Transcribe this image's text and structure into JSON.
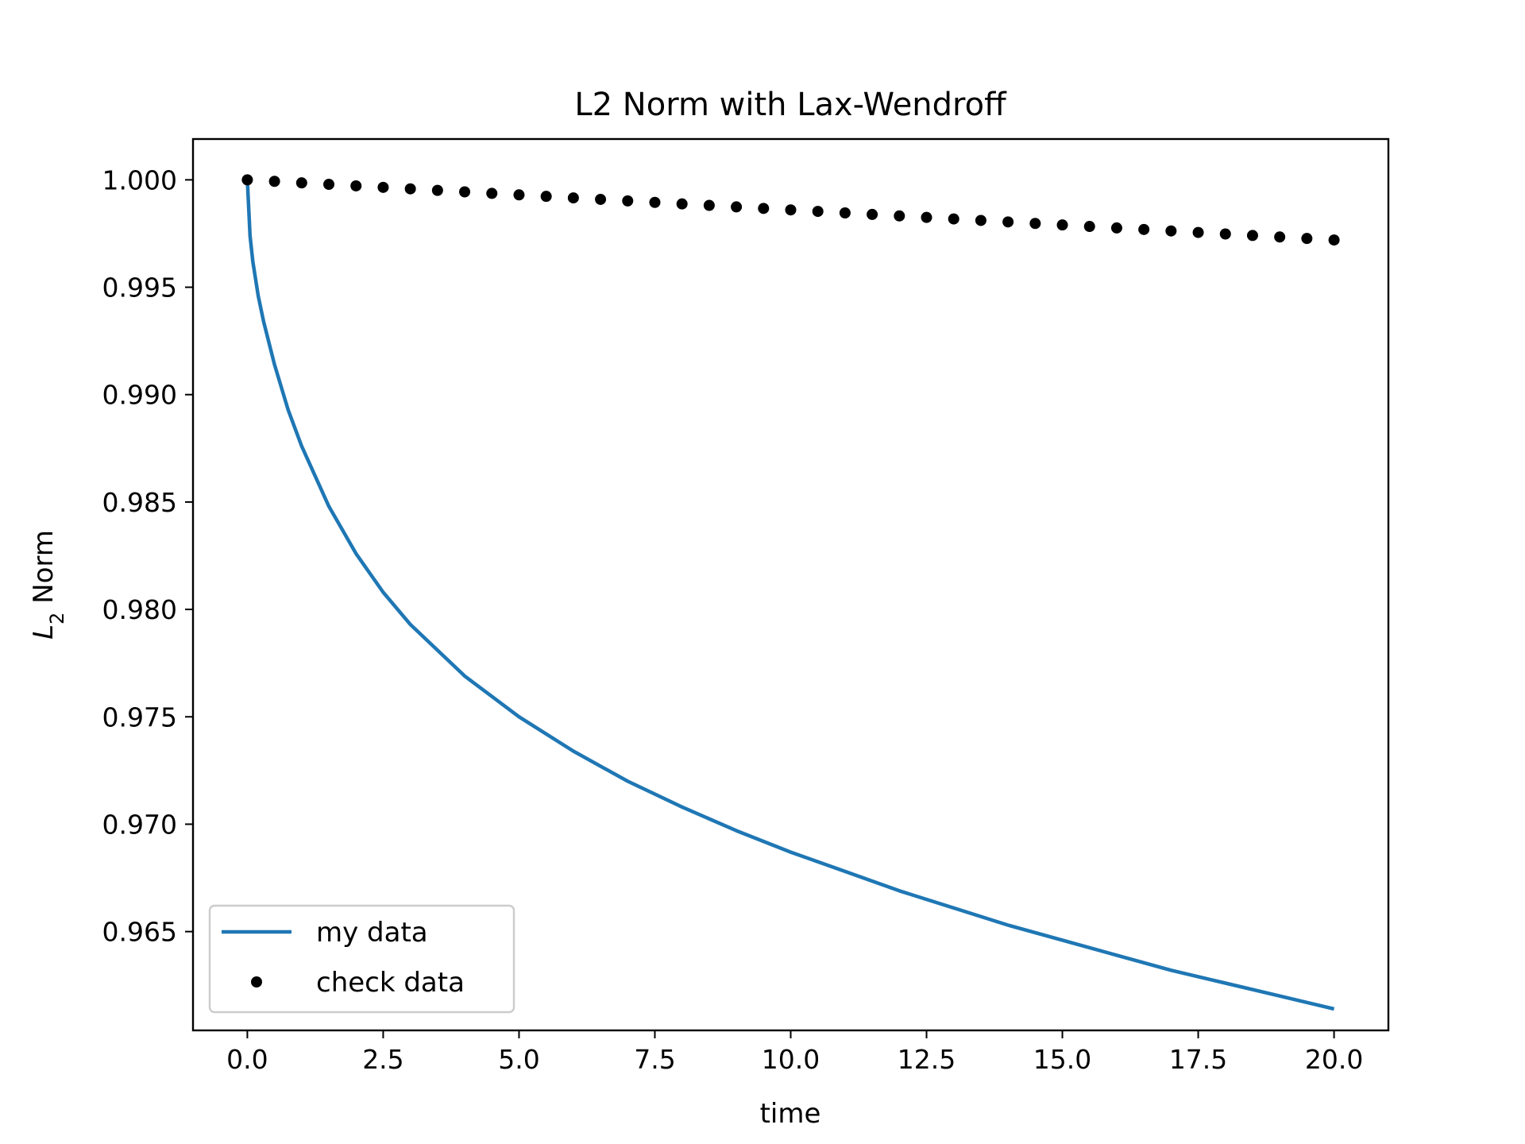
{
  "chart_data": {
    "type": "line",
    "title": "L2 Norm with Lax-Wendroff",
    "xlabel": "time",
    "ylabel_main": "L",
    "ylabel_sub": "2",
    "ylabel_rest": " Norm",
    "xlim": [
      -1.0,
      21.0
    ],
    "ylim": [
      0.9604,
      1.0019
    ],
    "xticks": [
      0.0,
      2.5,
      5.0,
      7.5,
      10.0,
      12.5,
      15.0,
      17.5,
      20.0
    ],
    "xtick_labels": [
      "0.0",
      "2.5",
      "5.0",
      "7.5",
      "10.0",
      "12.5",
      "15.0",
      "17.5",
      "20.0"
    ],
    "yticks": [
      0.965,
      0.97,
      0.975,
      0.98,
      0.985,
      0.99,
      0.995,
      1.0
    ],
    "ytick_labels": [
      "0.965",
      "0.970",
      "0.975",
      "0.980",
      "0.985",
      "0.990",
      "0.995",
      "1.000"
    ],
    "grid": false,
    "legend_position": "lower-left",
    "series": [
      {
        "name": "my data",
        "kind": "line",
        "color": "#1f77b4",
        "x": [
          0.0,
          0.05,
          0.1,
          0.2,
          0.3,
          0.5,
          0.75,
          1.0,
          1.5,
          2.0,
          2.5,
          3.0,
          4.0,
          5.0,
          6.0,
          7.0,
          8.0,
          9.0,
          10.0,
          11.0,
          12.0,
          13.0,
          14.0,
          15.0,
          16.0,
          17.0,
          18.0,
          19.0,
          20.0
        ],
        "y": [
          1.0,
          0.9974,
          0.9962,
          0.9946,
          0.9934,
          0.9914,
          0.9893,
          0.9876,
          0.9848,
          0.9826,
          0.9808,
          0.9793,
          0.9769,
          0.975,
          0.9734,
          0.972,
          0.9708,
          0.9697,
          0.9687,
          0.9678,
          0.9669,
          0.9661,
          0.9653,
          0.9646,
          0.9639,
          0.9632,
          0.9626,
          0.962,
          0.9614
        ]
      },
      {
        "name": "check data",
        "kind": "scatter",
        "color": "#000000",
        "x": [
          0.0,
          0.5,
          1.0,
          1.5,
          2.0,
          2.5,
          3.0,
          3.5,
          4.0,
          4.5,
          5.0,
          5.5,
          6.0,
          6.5,
          7.0,
          7.5,
          8.0,
          8.5,
          9.0,
          9.5,
          10.0,
          10.5,
          11.0,
          11.5,
          12.0,
          12.5,
          13.0,
          13.5,
          14.0,
          14.5,
          15.0,
          15.5,
          16.0,
          16.5,
          17.0,
          17.5,
          18.0,
          18.5,
          19.0,
          19.5,
          20.0
        ],
        "y": [
          1.0,
          0.99993,
          0.99986,
          0.99979,
          0.99972,
          0.99965,
          0.99958,
          0.99951,
          0.99944,
          0.99937,
          0.9993,
          0.99923,
          0.99916,
          0.99909,
          0.99902,
          0.99895,
          0.99888,
          0.99881,
          0.99874,
          0.99867,
          0.9986,
          0.99853,
          0.99846,
          0.99839,
          0.99832,
          0.99825,
          0.99818,
          0.99811,
          0.99804,
          0.99797,
          0.9979,
          0.99783,
          0.99776,
          0.99769,
          0.99762,
          0.99755,
          0.99748,
          0.99741,
          0.99734,
          0.99727,
          0.9972
        ]
      }
    ]
  }
}
